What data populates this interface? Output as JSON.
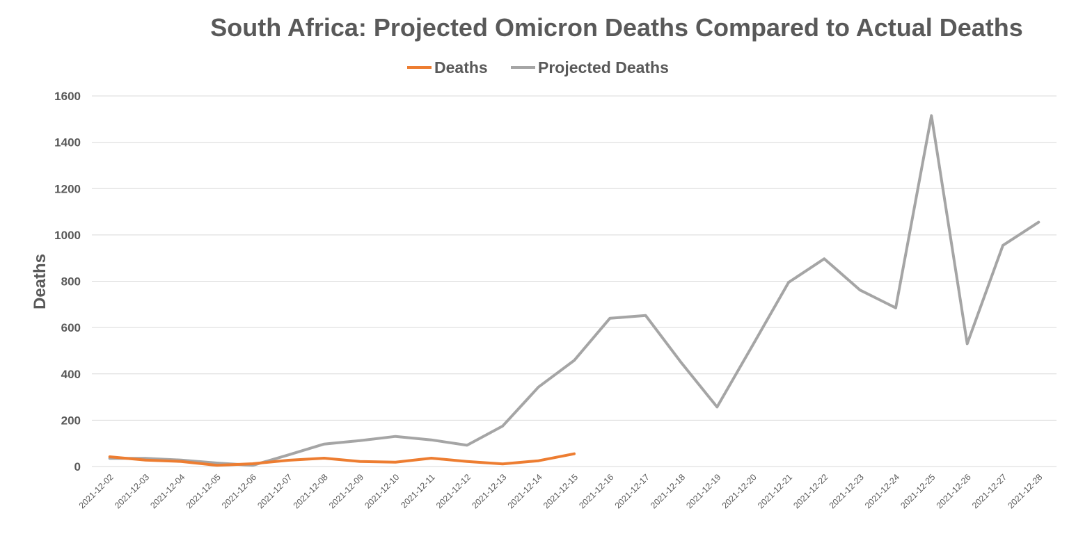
{
  "chart_data": {
    "type": "line",
    "title": "South Africa: Projected Omicron Deaths Compared to Actual Deaths",
    "ylabel": "Deaths",
    "xlabel": "",
    "ylim": [
      0,
      1600
    ],
    "yticks": [
      0,
      200,
      400,
      600,
      800,
      1000,
      1200,
      1400,
      1600
    ],
    "grid": true,
    "legend_position": "top",
    "categories": [
      "2021-12-02",
      "2021-12-03",
      "2021-12-04",
      "2021-12-05",
      "2021-12-06",
      "2021-12-07",
      "2021-12-08",
      "2021-12-09",
      "2021-12-10",
      "2021-12-11",
      "2021-12-12",
      "2021-12-13",
      "2021-12-14",
      "2021-12-15",
      "2021-12-16",
      "2021-12-17",
      "2021-12-18",
      "2021-12-19",
      "2021-12-20",
      "2021-12-21",
      "2021-12-22",
      "2021-12-23",
      "2021-12-24",
      "2021-12-25",
      "2021-12-26",
      "2021-12-27",
      "2021-12-28"
    ],
    "series": [
      {
        "name": "Deaths",
        "color": "#ed7d31",
        "values": [
          42,
          28,
          22,
          5,
          12,
          27,
          36,
          22,
          19,
          36,
          22,
          11,
          25,
          55,
          null,
          null,
          null,
          null,
          null,
          null,
          null,
          null,
          null,
          null,
          null,
          null,
          null
        ]
      },
      {
        "name": "Projected Deaths",
        "color": "#a5a5a5",
        "values": [
          35,
          35,
          28,
          15,
          5,
          50,
          97,
          112,
          130,
          115,
          92,
          175,
          343,
          458,
          640,
          652,
          448,
          257,
          525,
          795,
          897,
          762,
          685,
          1515,
          530,
          955,
          1055
        ]
      }
    ]
  }
}
